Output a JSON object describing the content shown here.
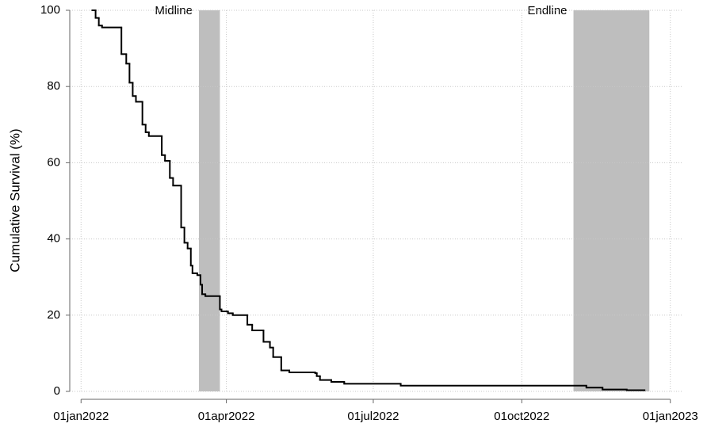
{
  "chart_data": {
    "type": "step",
    "ylabel": "Cumulative Survival (%)",
    "x": [
      7,
      9,
      11,
      13,
      25,
      28,
      30,
      32,
      34,
      38,
      40,
      42,
      50,
      52,
      55,
      57,
      62,
      64,
      66,
      68,
      69,
      72,
      74,
      75,
      77,
      86,
      87,
      91,
      94,
      103,
      106,
      113,
      117,
      119,
      124,
      129,
      145,
      146,
      148,
      155,
      163,
      198,
      313,
      323,
      338,
      349
    ],
    "values": [
      100,
      98,
      96,
      95.5,
      88.5,
      86,
      81,
      77.5,
      76,
      70,
      68,
      67,
      62,
      60.5,
      56,
      54,
      43,
      39,
      37.5,
      33,
      31,
      30.5,
      28,
      25.5,
      25,
      21.5,
      21,
      20.5,
      20,
      17.5,
      16,
      13,
      11.5,
      9,
      5.5,
      5,
      4.8,
      4,
      3,
      2.5,
      2,
      1.5,
      1,
      0.5,
      0.3,
      0.1
    ],
    "color": "#000000",
    "xlim": [
      -7,
      372
    ],
    "ylim": [
      0,
      100
    ],
    "xticks": [
      {
        "value": 0,
        "label": "01jan2022"
      },
      {
        "value": 90,
        "label": "01apr2022"
      },
      {
        "value": 181,
        "label": "01jul2022"
      },
      {
        "value": 273,
        "label": "01oct2022"
      },
      {
        "value": 365,
        "label": "01jan2023"
      }
    ],
    "yticks": [
      0,
      20,
      40,
      60,
      80,
      100
    ],
    "grid": true,
    "shaded_regions": [
      {
        "label": "Midline",
        "start": 73,
        "end": 86,
        "color": "#bebebe"
      },
      {
        "label": "Endline",
        "start": 305,
        "end": 352,
        "color": "#bebebe"
      }
    ]
  }
}
